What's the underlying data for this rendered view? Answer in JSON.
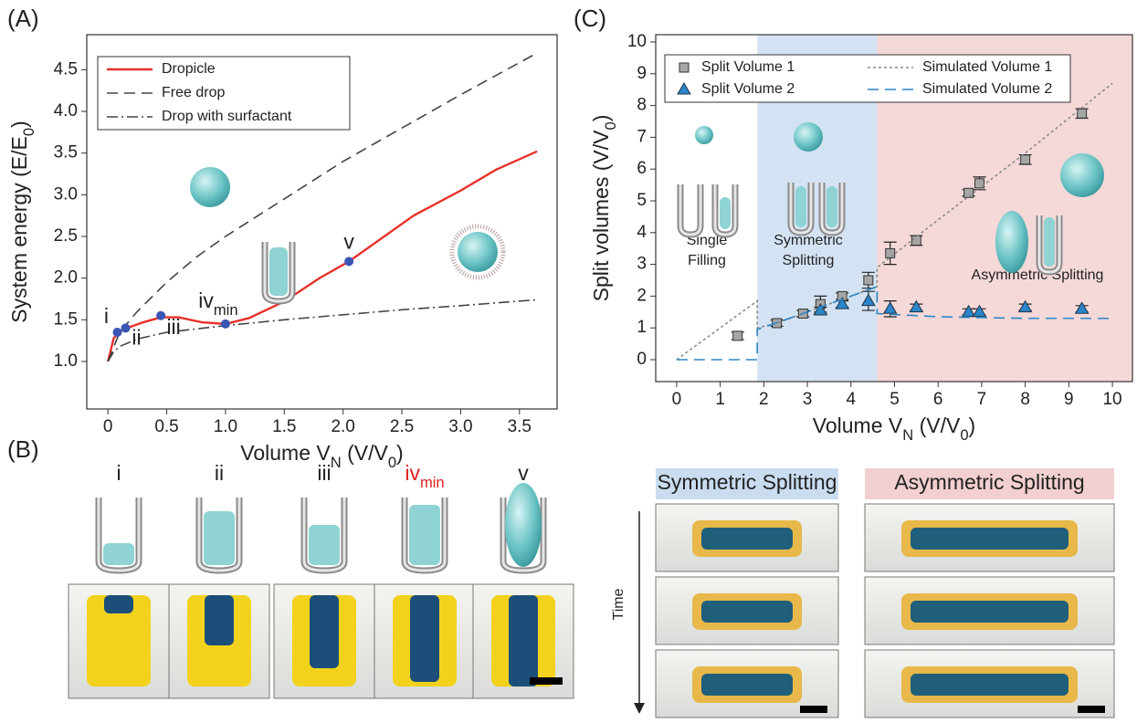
{
  "panel_labels": [
    "(A)",
    "(B)",
    "(C)"
  ],
  "chart_data": [
    {
      "type": "line",
      "xlim": [
        -0.18,
        3.82
      ],
      "ylim": [
        0.43,
        4.92
      ],
      "xticks": [
        0,
        0.5,
        {
          "value": 1,
          "label": "1.0"
        },
        1.5,
        {
          "value": 2,
          "label": "2.0"
        },
        2.5,
        {
          "value": 3,
          "label": "3.0"
        },
        3.5
      ],
      "yticks": [
        {
          "value": 1,
          "label": "1.0"
        },
        1.5,
        {
          "value": 2,
          "label": "2.0"
        },
        2.5,
        {
          "value": 3,
          "label": "3.0"
        },
        3.5,
        {
          "value": 4,
          "label": "4.0"
        },
        4.5
      ],
      "xlabel": [
        "Volume V",
        "N",
        " (V/V",
        "0",
        ")"
      ],
      "ylabel": [
        "System energy (E/E",
        "0",
        ")"
      ],
      "legend": "upper left",
      "series": [
        {
          "name": "Dropicle",
          "color": "#e8312a",
          "dash": "solid",
          "x": [
            0,
            0.05,
            0.1,
            0.2,
            0.3,
            0.45,
            0.6,
            0.8,
            1.0,
            1.2,
            1.5,
            1.8,
            2.05,
            2.3,
            2.6,
            3.0,
            3.3,
            3.65
          ],
          "y": [
            1.0,
            1.28,
            1.36,
            1.42,
            1.47,
            1.53,
            1.53,
            1.47,
            1.45,
            1.52,
            1.72,
            2.0,
            2.2,
            2.45,
            2.75,
            3.05,
            3.3,
            3.52
          ]
        },
        {
          "name": "Free drop",
          "color": "#444444",
          "dash": "dashed",
          "x": [
            0,
            0.1,
            0.25,
            0.5,
            0.75,
            1,
            1.5,
            2,
            2.5,
            3,
            3.65
          ],
          "y": [
            1.0,
            1.35,
            1.6,
            1.95,
            2.25,
            2.5,
            2.95,
            3.4,
            3.8,
            4.2,
            4.7
          ]
        },
        {
          "name": "Drop with surfactant",
          "color": "#444444",
          "dash": "dashdot",
          "x": [
            0,
            0.05,
            0.1,
            0.25,
            0.5,
            1,
            1.5,
            2,
            2.5,
            3,
            3.65
          ],
          "y": [
            1.0,
            1.12,
            1.18,
            1.27,
            1.35,
            1.43,
            1.5,
            1.56,
            1.62,
            1.67,
            1.74
          ]
        }
      ],
      "points": {
        "color": "#3a55b4",
        "x": [
          0.08,
          0.15,
          0.45,
          1.0,
          2.05
        ],
        "y": [
          1.35,
          1.4,
          1.55,
          1.45,
          2.2
        ],
        "labels": [
          "i",
          "ii",
          "iii",
          {
            "text": "iv",
            "sub": "min"
          },
          "v"
        ]
      }
    },
    {
      "type": "scatter",
      "xlim": [
        -0.48,
        10.46
      ],
      "ylim": [
        -0.69,
        10.23
      ],
      "xticks": [
        0,
        1,
        2,
        3,
        4,
        5,
        6,
        7,
        8,
        9,
        10
      ],
      "yticks": [
        0,
        1,
        2,
        3,
        4,
        5,
        6,
        7,
        8,
        9,
        10
      ],
      "xlabel": [
        "Volume V",
        "N",
        " (V/V",
        "0",
        ")"
      ],
      "ylabel": [
        "Split volumes (V/V",
        "0",
        ")"
      ],
      "legend": "upper center",
      "regions": [
        {
          "from": 1.85,
          "to": 4.6,
          "color": "#c9dcf0"
        },
        {
          "from": 4.6,
          "to": 10.46,
          "color": "#f2cfd0"
        }
      ],
      "annotations": [
        "Single",
        "Filling",
        "Symmetric",
        "Splitting",
        "Asymmetric Splitting"
      ],
      "series": [
        {
          "name": "Split Volume 1",
          "color": "#a6a6a6",
          "marker": "square",
          "x": [
            1.4,
            2.3,
            2.9,
            3.3,
            3.8,
            4.4,
            4.9,
            5.5,
            6.7,
            6.95,
            8.0,
            9.3
          ],
          "y": [
            0.75,
            1.15,
            1.45,
            1.75,
            2.0,
            2.5,
            3.35,
            3.75,
            5.25,
            5.55,
            6.3,
            7.75
          ],
          "err": [
            0.12,
            0.1,
            0.1,
            0.25,
            0.1,
            0.25,
            0.35,
            0.15,
            0.1,
            0.2,
            0.15,
            0.15
          ]
        },
        {
          "name": "Split Volume 2",
          "color": "#2a86c8",
          "marker": "triangle",
          "x": [
            3.3,
            3.8,
            4.4,
            4.9,
            5.5,
            6.7,
            6.95,
            8.0,
            9.3
          ],
          "y": [
            1.55,
            1.75,
            1.85,
            1.6,
            1.65,
            1.5,
            1.5,
            1.65,
            1.6
          ],
          "err": [
            0.1,
            0.1,
            0.3,
            0.25,
            0.1,
            0.1,
            0.1,
            0.1,
            0.1
          ]
        },
        {
          "name": "Simulated Volume 1",
          "color": "#888888",
          "dash": "dotted",
          "x": [
            0,
            1.85,
            1.85,
            2.3,
            3,
            3.8,
            4.6,
            4.6,
            6,
            8,
            10
          ],
          "y": [
            0,
            1.85,
            1.0,
            1.15,
            1.5,
            1.9,
            2.3,
            2.9,
            4.4,
            6.5,
            8.7
          ]
        },
        {
          "name": "Simulated Volume 2",
          "color": "#2a86c8",
          "dash": "dashed",
          "x": [
            0,
            1.85,
            1.85,
            3,
            4,
            4.6,
            4.6,
            6,
            8,
            10
          ],
          "y": [
            0,
            0,
            0.95,
            1.5,
            2.0,
            2.3,
            1.45,
            1.35,
            1.3,
            1.3
          ]
        }
      ]
    }
  ],
  "panel_b": {
    "labels": [
      "i",
      "ii",
      "iii",
      {
        "text": "iv",
        "sub": "min"
      },
      "v"
    ]
  },
  "panel_d": {
    "headers": [
      "Symmetric Splitting",
      "Asymmetric Splitting"
    ],
    "time": "Time"
  }
}
